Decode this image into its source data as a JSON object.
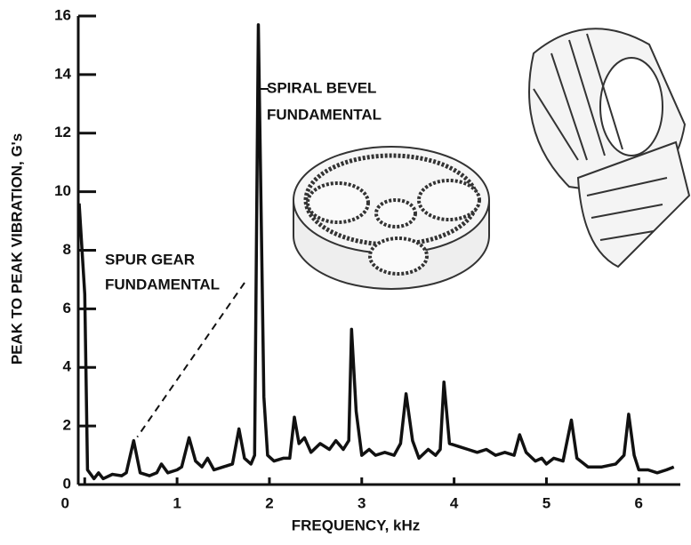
{
  "chart_data": {
    "type": "line",
    "x_label": "FREQUENCY, kHz",
    "y_label": "PEAK TO PEAK VIBRATION, G's",
    "x": [
      -0.06,
      0.0,
      0.03,
      0.1,
      0.15,
      0.2,
      0.3,
      0.4,
      0.45,
      0.53,
      0.6,
      0.7,
      0.78,
      0.83,
      0.9,
      1.0,
      1.05,
      1.13,
      1.2,
      1.27,
      1.33,
      1.4,
      1.5,
      1.6,
      1.67,
      1.73,
      1.8,
      1.84,
      1.88,
      1.94,
      1.98,
      2.05,
      2.15,
      2.22,
      2.27,
      2.32,
      2.38,
      2.45,
      2.55,
      2.65,
      2.72,
      2.8,
      2.86,
      2.89,
      2.94,
      3.0,
      3.08,
      3.15,
      3.25,
      3.35,
      3.42,
      3.48,
      3.55,
      3.62,
      3.72,
      3.8,
      3.85,
      3.89,
      3.95,
      4.05,
      4.15,
      4.25,
      4.35,
      4.45,
      4.55,
      4.65,
      4.71,
      4.78,
      4.88,
      4.95,
      5.0,
      5.08,
      5.18,
      5.27,
      5.33,
      5.45,
      5.6,
      5.75,
      5.84,
      5.89,
      5.95,
      6.0,
      6.1,
      6.2,
      6.3,
      6.38
    ],
    "values": [
      9.6,
      6.5,
      0.5,
      0.2,
      0.4,
      0.2,
      0.35,
      0.3,
      0.4,
      1.5,
      0.4,
      0.3,
      0.4,
      0.7,
      0.4,
      0.5,
      0.6,
      1.6,
      0.8,
      0.6,
      0.9,
      0.5,
      0.6,
      0.7,
      1.9,
      0.9,
      0.7,
      1.0,
      15.7,
      3.0,
      1.0,
      0.8,
      0.9,
      0.9,
      2.3,
      1.4,
      1.6,
      1.1,
      1.4,
      1.2,
      1.5,
      1.2,
      1.5,
      5.3,
      2.5,
      1.0,
      1.2,
      1.0,
      1.1,
      1.0,
      1.4,
      3.1,
      1.5,
      0.9,
      1.2,
      1.0,
      1.2,
      3.5,
      1.4,
      1.3,
      1.2,
      1.1,
      1.2,
      1.0,
      1.1,
      1.0,
      1.7,
      1.1,
      0.8,
      0.9,
      0.7,
      0.9,
      0.8,
      2.2,
      0.9,
      0.6,
      0.6,
      0.7,
      1.0,
      2.4,
      1.0,
      0.5,
      0.5,
      0.4,
      0.5,
      0.6
    ],
    "color": "#111111",
    "xlim": [
      -0.07,
      6.45
    ],
    "ylim": [
      0,
      16
    ],
    "xticks": [
      0,
      1,
      2,
      3,
      4,
      5,
      6
    ],
    "yticks": [
      0,
      2,
      4,
      6,
      8,
      10,
      12,
      14,
      16
    ],
    "grid": false,
    "annotations": [
      {
        "lines": [
          "SPIRAL BEVEL",
          "FUNDAMENTAL"
        ]
      },
      {
        "lines": [
          "SPUR GEAR",
          "FUNDAMENTAL"
        ]
      }
    ]
  }
}
